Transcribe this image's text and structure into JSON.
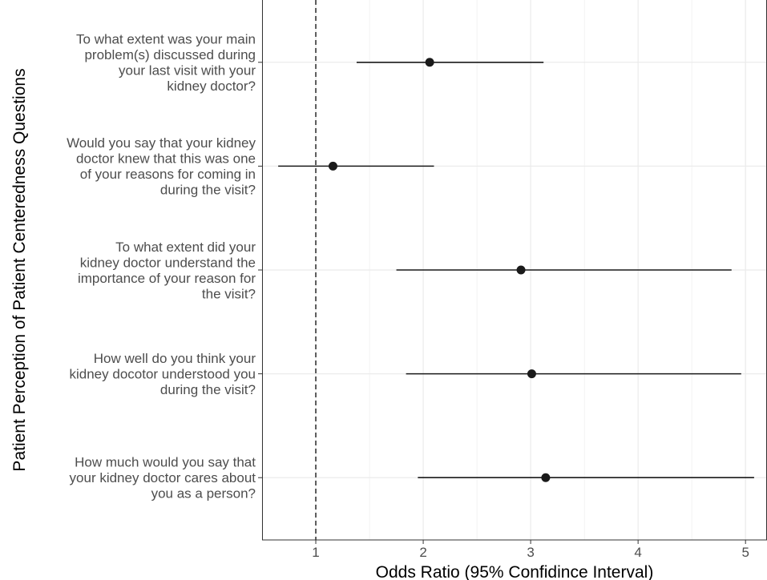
{
  "chart_data": {
    "type": "forest",
    "xlabel": "Odds Ratio (95% Confidince Interval)",
    "ylabel": "Patient Perception of Patient Centeredness Questions",
    "xlim": [
      0.5,
      5.2
    ],
    "xticks": [
      1,
      2,
      3,
      4,
      5
    ],
    "reference_line": 1,
    "grid": true,
    "rows": [
      {
        "label": [
          "To what extent was your main",
          "problem(s) discussed during",
          "your last visit with your",
          "kidney doctor?"
        ],
        "estimate": 2.06,
        "lower": 1.38,
        "upper": 3.12
      },
      {
        "label": [
          "Would you say that your kidney",
          "doctor knew that this was one",
          "of your reasons for coming in",
          "during the visit?"
        ],
        "estimate": 1.16,
        "lower": 0.65,
        "upper": 2.1
      },
      {
        "label": [
          "To what extent did your",
          "kidney doctor understand the",
          "importance of your reason for",
          "the visit?"
        ],
        "estimate": 2.91,
        "lower": 1.75,
        "upper": 4.87
      },
      {
        "label": [
          "How well do you think your",
          "kidney docotor understood you",
          "during the visit?"
        ],
        "estimate": 3.01,
        "lower": 1.84,
        "upper": 4.96
      },
      {
        "label": [
          "How much would you say that",
          "your kidney doctor cares about",
          "you as a person?"
        ],
        "estimate": 3.14,
        "lower": 1.95,
        "upper": 5.08
      }
    ],
    "colors": {
      "points": "#1a1a1a",
      "panel_border": "#333333",
      "grid": "#ebebeb",
      "reference": "#1a1a1a"
    }
  }
}
